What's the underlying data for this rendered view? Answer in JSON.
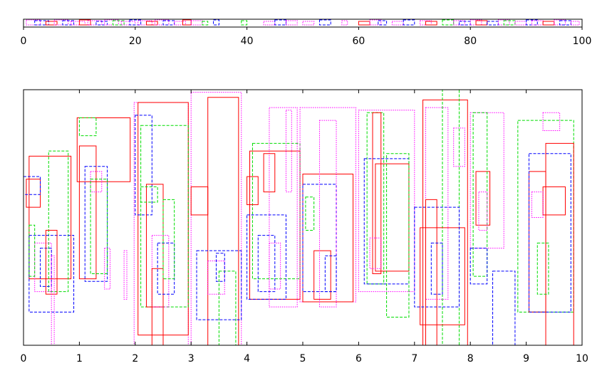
{
  "chart_data": [
    {
      "type": "rectangles",
      "title": "",
      "xlim": [
        0,
        100
      ],
      "xticks": [
        "0",
        "20",
        "40",
        "60",
        "80",
        "100"
      ],
      "xtick_values": [
        0,
        20,
        40,
        60,
        80,
        100
      ],
      "colors": {
        "r": "#ff0000",
        "g": "#00dd00",
        "b": "#0000ff",
        "m": "#ff00ff"
      },
      "segments": [
        [
          0.5,
          3,
          "m"
        ],
        [
          2,
          4.5,
          "b"
        ],
        [
          4,
          6,
          "r"
        ],
        [
          5.5,
          8,
          "m"
        ],
        [
          7,
          9,
          "b"
        ],
        [
          8.5,
          11,
          "m"
        ],
        [
          10,
          12,
          "r"
        ],
        [
          11.5,
          14,
          "m"
        ],
        [
          13,
          15,
          "b"
        ],
        [
          14.5,
          17,
          "m"
        ],
        [
          16,
          18,
          "g"
        ],
        [
          17.5,
          20,
          "m"
        ],
        [
          19,
          21,
          "b"
        ],
        [
          20.5,
          23,
          "m"
        ],
        [
          22,
          24,
          "r"
        ],
        [
          23.5,
          26,
          "m"
        ],
        [
          25,
          27,
          "b"
        ],
        [
          27,
          29,
          "m"
        ],
        [
          28.5,
          30,
          "r"
        ],
        [
          30,
          32,
          "m"
        ],
        [
          32,
          33,
          "g"
        ],
        [
          34,
          35,
          "b"
        ],
        [
          39,
          40,
          "g"
        ],
        [
          43,
          45,
          "m"
        ],
        [
          45,
          47,
          "b"
        ],
        [
          47,
          49,
          "m"
        ],
        [
          50,
          52,
          "m"
        ],
        [
          53,
          55,
          "b"
        ],
        [
          57,
          58,
          "m"
        ],
        [
          60,
          62,
          "r"
        ],
        [
          62,
          64,
          "m"
        ],
        [
          63.5,
          65,
          "b"
        ],
        [
          66,
          68,
          "m"
        ],
        [
          68,
          70,
          "b"
        ],
        [
          71,
          73,
          "m"
        ],
        [
          72,
          74,
          "r"
        ],
        [
          75,
          77,
          "g"
        ],
        [
          77,
          79,
          "m"
        ],
        [
          78,
          80,
          "b"
        ],
        [
          80,
          82,
          "m"
        ],
        [
          81,
          83,
          "r"
        ],
        [
          83,
          85,
          "b"
        ],
        [
          85,
          87,
          "m"
        ],
        [
          86,
          88,
          "g"
        ],
        [
          88,
          90,
          "m"
        ],
        [
          90,
          92,
          "b"
        ],
        [
          91,
          93,
          "m"
        ],
        [
          93,
          95,
          "r"
        ],
        [
          95,
          97,
          "m"
        ],
        [
          96,
          98,
          "b"
        ],
        [
          98,
          99.5,
          "m"
        ]
      ]
    },
    {
      "type": "rectangles",
      "title": "",
      "xlim": [
        0,
        10
      ],
      "ylim": [
        0,
        100
      ],
      "xticks": [
        "0",
        "1",
        "2",
        "3",
        "4",
        "5",
        "6",
        "7",
        "8",
        "9",
        "10"
      ],
      "xtick_values": [
        0,
        1,
        2,
        3,
        4,
        5,
        6,
        7,
        8,
        9,
        10
      ],
      "styles": {
        "r": "solid",
        "g": "dashed",
        "b": "dashed",
        "m": "dotted"
      },
      "rects": [
        [
          0.1,
          0.85,
          26,
          74,
          "r"
        ],
        [
          0.45,
          0.8,
          21,
          76,
          "g"
        ],
        [
          0.1,
          0.9,
          13,
          43,
          "b"
        ],
        [
          0.05,
          0.3,
          54,
          65,
          "r"
        ],
        [
          0.0,
          0.3,
          59,
          66,
          "b"
        ],
        [
          0.2,
          0.5,
          21,
          40,
          "m"
        ],
        [
          0.3,
          0.5,
          23,
          38,
          "b"
        ],
        [
          0.4,
          0.6,
          20,
          45,
          "r"
        ],
        [
          0.5,
          0.55,
          0,
          35,
          "m"
        ],
        [
          0.1,
          0.2,
          27,
          47,
          "g"
        ],
        [
          0.96,
          1.91,
          64,
          89,
          "r"
        ],
        [
          1.0,
          1.3,
          82,
          89,
          "g"
        ],
        [
          1.0,
          1.3,
          26,
          78,
          "r"
        ],
        [
          1.1,
          1.5,
          25,
          70,
          "b"
        ],
        [
          1.2,
          1.4,
          60,
          68,
          "m"
        ],
        [
          1.45,
          1.55,
          22,
          38,
          "m"
        ],
        [
          1.2,
          1.5,
          28,
          65,
          "g"
        ],
        [
          1.8,
          1.85,
          18,
          37,
          "m"
        ],
        [
          1.98,
          2.95,
          0,
          95,
          "m"
        ],
        [
          2.05,
          2.95,
          4,
          95,
          "r"
        ],
        [
          2.1,
          2.95,
          15,
          86,
          "g"
        ],
        [
          2.0,
          2.3,
          51,
          90,
          "b"
        ],
        [
          2.2,
          2.5,
          15,
          63,
          "r"
        ],
        [
          2.3,
          2.6,
          15,
          43,
          "m"
        ],
        [
          2.1,
          2.4,
          56,
          62,
          "g"
        ],
        [
          2.3,
          2.5,
          0,
          30,
          "r"
        ],
        [
          2.4,
          2.7,
          20,
          40,
          "b"
        ],
        [
          2.5,
          2.7,
          26,
          57,
          "g"
        ],
        [
          3.3,
          3.85,
          0,
          97,
          "r"
        ],
        [
          3.0,
          3.9,
          0,
          99,
          "m"
        ],
        [
          3.0,
          3.3,
          51,
          62,
          "r"
        ],
        [
          3.1,
          3.9,
          10,
          37,
          "b"
        ],
        [
          3.5,
          3.8,
          0,
          29,
          "g"
        ],
        [
          3.3,
          3.6,
          20,
          33,
          "m"
        ],
        [
          3.45,
          3.6,
          25,
          36,
          "b"
        ],
        [
          4.05,
          4.95,
          18,
          76,
          "r"
        ],
        [
          4.1,
          4.95,
          26,
          79,
          "g"
        ],
        [
          4.4,
          4.9,
          15,
          93,
          "m"
        ],
        [
          4.0,
          4.7,
          18,
          51,
          "b"
        ],
        [
          4.2,
          4.5,
          21,
          43,
          "b"
        ],
        [
          4.3,
          4.5,
          60,
          75,
          "r"
        ],
        [
          4.4,
          4.6,
          22,
          40,
          "m"
        ],
        [
          4.7,
          4.8,
          60,
          92,
          "m"
        ],
        [
          4.0,
          4.2,
          55,
          66,
          "r"
        ],
        [
          4.95,
          5.95,
          17,
          93,
          "m"
        ],
        [
          5.0,
          5.9,
          17,
          67,
          "r"
        ],
        [
          5.0,
          5.6,
          21,
          63,
          "b"
        ],
        [
          5.2,
          5.5,
          18,
          37,
          "r"
        ],
        [
          5.3,
          5.6,
          15,
          88,
          "m"
        ],
        [
          5.05,
          5.2,
          45,
          58,
          "g"
        ],
        [
          5.4,
          5.6,
          21,
          35,
          "b"
        ],
        [
          6.0,
          7.0,
          21,
          92,
          "m"
        ],
        [
          6.15,
          6.45,
          24,
          91,
          "g"
        ],
        [
          6.25,
          6.4,
          28,
          91,
          "r"
        ],
        [
          6.1,
          6.9,
          24,
          73,
          "b"
        ],
        [
          6.3,
          6.9,
          29,
          71,
          "r"
        ],
        [
          6.5,
          6.9,
          11,
          75,
          "g"
        ],
        [
          6.2,
          6.4,
          30,
          42,
          "m"
        ],
        [
          7.15,
          7.95,
          0,
          96,
          "r"
        ],
        [
          7.5,
          7.8,
          0,
          100,
          "g"
        ],
        [
          7.1,
          7.9,
          8,
          46,
          "r"
        ],
        [
          7.0,
          7.8,
          15,
          54,
          "b"
        ],
        [
          7.2,
          7.6,
          18,
          93,
          "m"
        ],
        [
          7.2,
          7.4,
          0,
          57,
          "r"
        ],
        [
          7.3,
          7.5,
          20,
          40,
          "b"
        ],
        [
          7.7,
          7.9,
          70,
          85,
          "m"
        ],
        [
          8.0,
          8.6,
          38,
          91,
          "m"
        ],
        [
          8.1,
          8.35,
          47,
          68,
          "r"
        ],
        [
          8.05,
          8.3,
          27,
          91,
          "g"
        ],
        [
          8.0,
          8.3,
          24,
          38,
          "b"
        ],
        [
          8.4,
          8.8,
          0,
          29,
          "b"
        ],
        [
          8.15,
          8.3,
          45,
          60,
          "m"
        ],
        [
          8.85,
          9.85,
          13,
          88,
          "g"
        ],
        [
          9.05,
          9.35,
          13,
          68,
          "r"
        ],
        [
          9.05,
          9.8,
          13,
          75,
          "b"
        ],
        [
          9.3,
          9.7,
          51,
          62,
          "r"
        ],
        [
          9.3,
          9.6,
          84,
          91,
          "m"
        ],
        [
          9.35,
          9.85,
          0,
          79,
          "r"
        ],
        [
          9.1,
          9.3,
          50,
          60,
          "m"
        ],
        [
          9.2,
          9.4,
          20,
          40,
          "g"
        ]
      ]
    }
  ]
}
